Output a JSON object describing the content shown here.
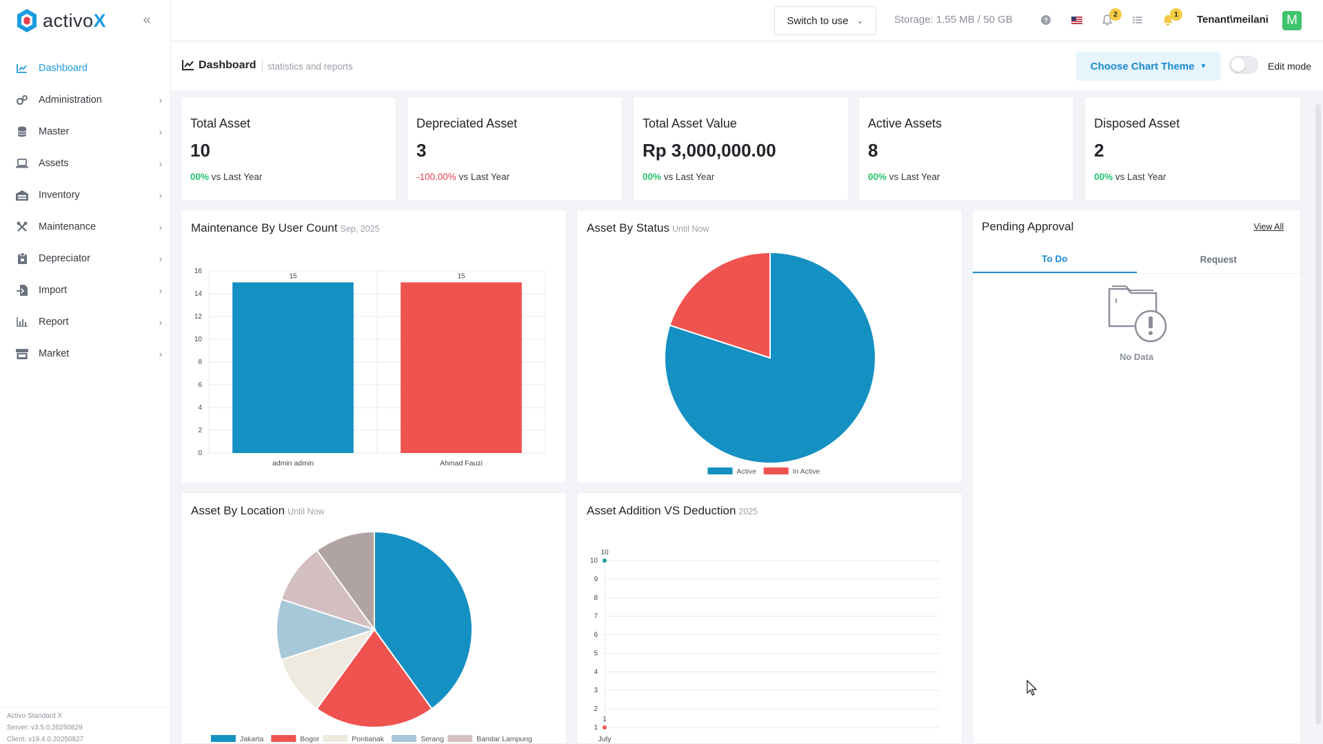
{
  "brand": {
    "name_main": "activo",
    "name_accent": "X"
  },
  "sidebar": {
    "items": [
      {
        "label": "Dashboard",
        "icon": "chart-line-icon",
        "active": true
      },
      {
        "label": "Administration",
        "icon": "gears-icon"
      },
      {
        "label": "Master",
        "icon": "database-icon"
      },
      {
        "label": "Assets",
        "icon": "laptop-icon"
      },
      {
        "label": "Inventory",
        "icon": "warehouse-icon"
      },
      {
        "label": "Maintenance",
        "icon": "tools-icon"
      },
      {
        "label": "Depreciator",
        "icon": "clipboard-icon"
      },
      {
        "label": "Import",
        "icon": "file-import-icon"
      },
      {
        "label": "Report",
        "icon": "bar-chart-icon"
      },
      {
        "label": "Market",
        "icon": "store-icon"
      }
    ],
    "footer": {
      "product": "Activo Standard X",
      "server": "Server: v3.5.0.20250829",
      "client": "Client: v19.4.0.20250827"
    }
  },
  "topbar": {
    "switch_label": "Switch to use",
    "storage": "Storage: 1.55 MB / 50 GB",
    "notifications_count": "2",
    "alerts_count": "1",
    "tenant": "Tenant\\meilani",
    "avatar_letter": "M"
  },
  "page_header": {
    "title": "Dashboard",
    "subtitle": "statistics and reports",
    "theme_button": "Choose Chart Theme",
    "edit_mode_label": "Edit mode"
  },
  "stats": [
    {
      "title": "Total Asset",
      "value": "10",
      "pct": "00%",
      "trend": "up",
      "suffix": "vs Last Year"
    },
    {
      "title": "Depreciated Asset",
      "value": "3",
      "pct": "-100.00%",
      "trend": "down",
      "suffix": "vs Last Year"
    },
    {
      "title": "Total Asset Value",
      "value": "Rp 3,000,000.00",
      "pct": "00%",
      "trend": "up",
      "suffix": "vs Last Year"
    },
    {
      "title": "Active Assets",
      "value": "8",
      "pct": "00%",
      "trend": "up",
      "suffix": "vs Last Year"
    },
    {
      "title": "Disposed Asset",
      "value": "2",
      "pct": "00%",
      "trend": "up",
      "suffix": "vs Last Year"
    }
  ],
  "panels": {
    "maintenance": {
      "title": "Maintenance By User Count",
      "sub": "Sep, 2025"
    },
    "status": {
      "title": "Asset By Status",
      "sub": "Until Now"
    },
    "location": {
      "title": "Asset By Location",
      "sub": "Until Now"
    },
    "addition": {
      "title": "Asset Addition VS Deduction",
      "sub": "2025"
    }
  },
  "pending": {
    "title": "Pending Approval",
    "view_all": "View All",
    "tabs": [
      "To Do",
      "Request"
    ],
    "empty": "No Data"
  },
  "colors": {
    "blue": "#1590c2",
    "red": "#ef5350",
    "accent": "#1a9be0"
  },
  "chart_data": [
    {
      "type": "bar",
      "categories": [
        "admin admin",
        "Ahmad Fauzi"
      ],
      "values": [
        15,
        15
      ],
      "ylim": [
        0,
        16
      ],
      "yticks": [
        0,
        2,
        4,
        6,
        8,
        10,
        12,
        14,
        16
      ],
      "colors": [
        "#1590c2",
        "#ef5350"
      ],
      "grid": true
    },
    {
      "type": "pie",
      "labels": [
        "Active",
        "In Active"
      ],
      "values": [
        8,
        2
      ],
      "colors": [
        "#1590c2",
        "#ef5350"
      ],
      "legend": "bottom"
    },
    {
      "type": "pie",
      "labels": [
        "Jakarta",
        "Bogor",
        "Pontianak",
        "Serang",
        "Bandar Lampung",
        ""
      ],
      "values": [
        4,
        2,
        1,
        1,
        1,
        1
      ],
      "colors": [
        "#1590c2",
        "#ef5350",
        "#eeeadf",
        "#a6c8d8",
        "#d4bfc0",
        "#b0a4a3"
      ],
      "legend": "bottom"
    },
    {
      "type": "line",
      "x": [
        "July"
      ],
      "series": [
        {
          "values": [
            10
          ],
          "color": "#1a9a9a",
          "point_label": "10"
        },
        {
          "values": [
            1
          ],
          "color": "#ef5350",
          "point_label": "1"
        }
      ],
      "ylim": [
        1,
        10
      ],
      "yticks": [
        1,
        2,
        3,
        4,
        5,
        6,
        7,
        8,
        9,
        10
      ],
      "grid": true
    }
  ]
}
